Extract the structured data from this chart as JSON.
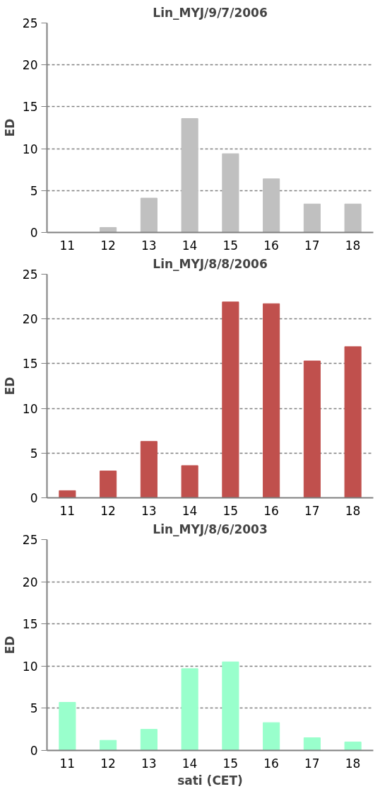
{
  "chart_data": [
    {
      "type": "bar",
      "title": "Lin_MYJ/9/7/2006",
      "ylabel": "ED",
      "categories": [
        "11",
        "12",
        "13",
        "14",
        "15",
        "16",
        "17",
        "18"
      ],
      "values": [
        0,
        0.6,
        4.1,
        13.6,
        9.4,
        6.4,
        3.4,
        3.4
      ],
      "color": "#c0c0c0",
      "ylim": [
        0,
        25
      ],
      "yticks": [
        0,
        5,
        10,
        15,
        20,
        25
      ],
      "grid": "y"
    },
    {
      "type": "bar",
      "title": "Lin_MYJ/8/8/2006",
      "ylabel": "ED",
      "categories": [
        "11",
        "12",
        "13",
        "14",
        "15",
        "16",
        "17",
        "18"
      ],
      "values": [
        0.8,
        3.0,
        6.3,
        3.6,
        21.9,
        21.7,
        15.3,
        16.9
      ],
      "color": "#c0504d",
      "ylim": [
        0,
        25
      ],
      "yticks": [
        0,
        5,
        10,
        15,
        20,
        25
      ],
      "grid": "y"
    },
    {
      "type": "bar",
      "title": "Lin_MYJ/8/6/2003",
      "ylabel": "ED",
      "xlabel": "sati (CET)",
      "categories": [
        "11",
        "12",
        "13",
        "14",
        "15",
        "16",
        "17",
        "18"
      ],
      "values": [
        5.7,
        1.2,
        2.5,
        9.7,
        10.5,
        3.3,
        1.5,
        1.0
      ],
      "color": "#99ffcc",
      "ylim": [
        0,
        25
      ],
      "yticks": [
        0,
        5,
        10,
        15,
        20,
        25
      ],
      "grid": "y"
    }
  ]
}
